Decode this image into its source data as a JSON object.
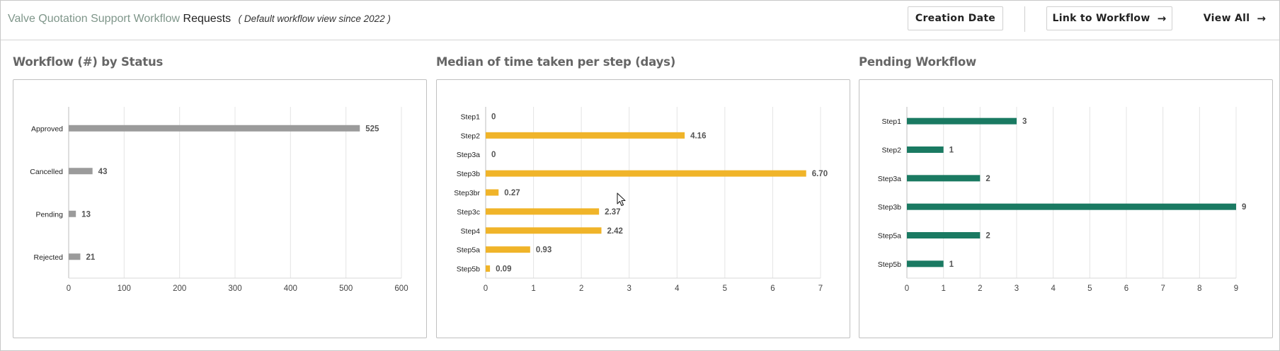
{
  "header": {
    "app_name": "Valve Quotation Support Workflow",
    "section": "Requests",
    "note": "( Default workflow view since 2022 )",
    "buttons": {
      "creation_date": "Creation Date",
      "link_to_workflow": "Link to Workflow",
      "view_all": "View All"
    }
  },
  "colors": {
    "gray": "#9b9b9b",
    "gold": "#f0b429",
    "green": "#1a7a62"
  },
  "chart_data": [
    {
      "type": "bar",
      "orientation": "horizontal",
      "title": "Workflow (#) by Status",
      "categories": [
        "Approved",
        "Cancelled",
        "Pending",
        "Rejected"
      ],
      "values": [
        525,
        43,
        13,
        21
      ],
      "value_labels": [
        "525",
        "43",
        "13",
        "21"
      ],
      "xlim": [
        0,
        600
      ],
      "xticks": [
        0,
        100,
        200,
        300,
        400,
        500,
        600
      ],
      "grid": true,
      "color": "#9b9b9b"
    },
    {
      "type": "bar",
      "orientation": "horizontal",
      "title": "Median of time taken per step (days)",
      "categories": [
        "Step1",
        "Step2",
        "Step3a",
        "Step3b",
        "Step3br",
        "Step3c",
        "Step4",
        "Step5a",
        "Step5b"
      ],
      "values": [
        0,
        4.16,
        0,
        6.7,
        0.27,
        2.37,
        2.42,
        0.93,
        0.09
      ],
      "value_labels": [
        "0",
        "4.16",
        "0",
        "6.70",
        "0.27",
        "2.37",
        "2.42",
        "0.93",
        "0.09"
      ],
      "xlim": [
        0,
        7
      ],
      "xticks": [
        0,
        1,
        2,
        3,
        4,
        5,
        6,
        7
      ],
      "grid": true,
      "color": "#f0b429"
    },
    {
      "type": "bar",
      "orientation": "horizontal",
      "title": "Pending Workflow",
      "categories": [
        "Step1",
        "Step2",
        "Step3a",
        "Step3b",
        "Step5a",
        "Step5b"
      ],
      "values": [
        3,
        1,
        2,
        9,
        2,
        1
      ],
      "value_labels": [
        "3",
        "1",
        "2",
        "9",
        "2",
        "1"
      ],
      "xlim": [
        0,
        9
      ],
      "xticks": [
        0,
        1,
        2,
        3,
        4,
        5,
        6,
        7,
        8,
        9
      ],
      "grid": true,
      "color": "#1a7a62"
    }
  ]
}
